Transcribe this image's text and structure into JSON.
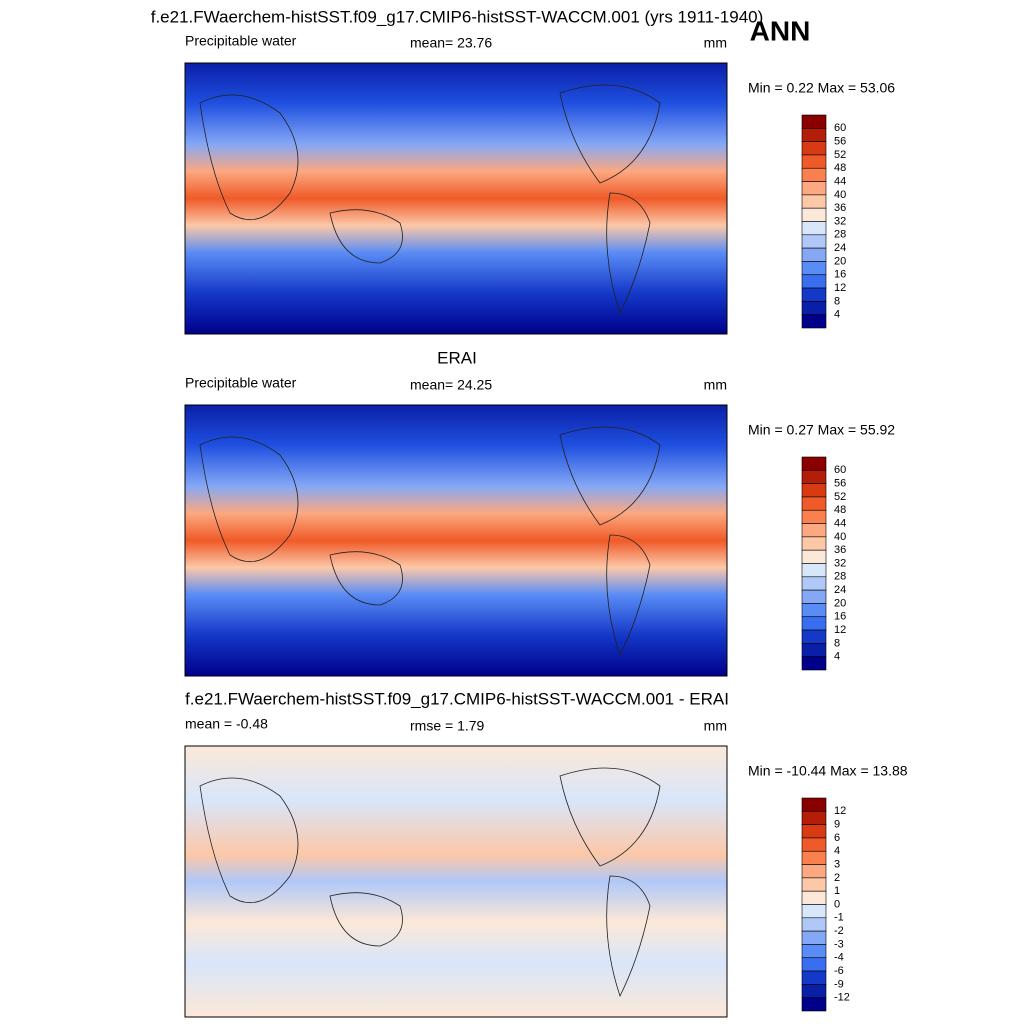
{
  "header": {
    "title": "f.e21.FWaerchem-histSST.f09_g17.CMIP6-histSST-WACCM.001 (yrs 1911-1940)",
    "season": "ANN"
  },
  "panels": [
    {
      "variable": "Precipitable water",
      "stat": "mean=  23.76",
      "units": "mm",
      "range": "Min =   0.22 Max =  53.06",
      "colorbar": {
        "labels": [
          "60",
          "56",
          "52",
          "48",
          "44",
          "40",
          "36",
          "32",
          "28",
          "24",
          "20",
          "16",
          "12",
          "8",
          "4"
        ],
        "colors": [
          "#8a0000",
          "#b41e08",
          "#d83a14",
          "#f05a28",
          "#fa8050",
          "#fca880",
          "#fcc8a8",
          "#fce8d8",
          "#d8e6fa",
          "#b0c8f8",
          "#85a8f5",
          "#5a8cf5",
          "#3a6ef0",
          "#1438c8",
          "#0a1fa8",
          "#00008a"
        ]
      }
    },
    {
      "title": "ERAI",
      "variable": "Precipitable water",
      "stat": "mean=  24.25",
      "units": "mm",
      "range": "Min =   0.27 Max =  55.92",
      "colorbar": {
        "labels": [
          "60",
          "56",
          "52",
          "48",
          "44",
          "40",
          "36",
          "32",
          "28",
          "24",
          "20",
          "16",
          "12",
          "8",
          "4"
        ],
        "colors": [
          "#8a0000",
          "#b41e08",
          "#d83a14",
          "#f05a28",
          "#fa8050",
          "#fca880",
          "#fcc8a8",
          "#fce8d8",
          "#d8e6fa",
          "#b0c8f8",
          "#85a8f5",
          "#5a8cf5",
          "#3a6ef0",
          "#1438c8",
          "#0a1fa8",
          "#00008a"
        ]
      }
    },
    {
      "title": "f.e21.FWaerchem-histSST.f09_g17.CMIP6-histSST-WACCM.001 - ERAI",
      "variable": "mean =  -0.48",
      "stat": "rmse =   1.79",
      "units": "mm",
      "range": "Min = -10.44 Max =  13.88",
      "colorbar": {
        "labels": [
          "12",
          "9",
          "6",
          "4",
          "3",
          "2",
          "1",
          "0",
          "-1",
          "-2",
          "-3",
          "-4",
          "-6",
          "-9",
          "-12"
        ],
        "colors": [
          "#8a0000",
          "#b41e08",
          "#d83a14",
          "#f05a28",
          "#fa8050",
          "#fca880",
          "#fcc8a8",
          "#fce8d8",
          "#d8e6fa",
          "#b0c8f8",
          "#85a8f5",
          "#5a8cf5",
          "#3a6ef0",
          "#1438c8",
          "#0a1fa8",
          "#00008a"
        ]
      }
    }
  ]
}
